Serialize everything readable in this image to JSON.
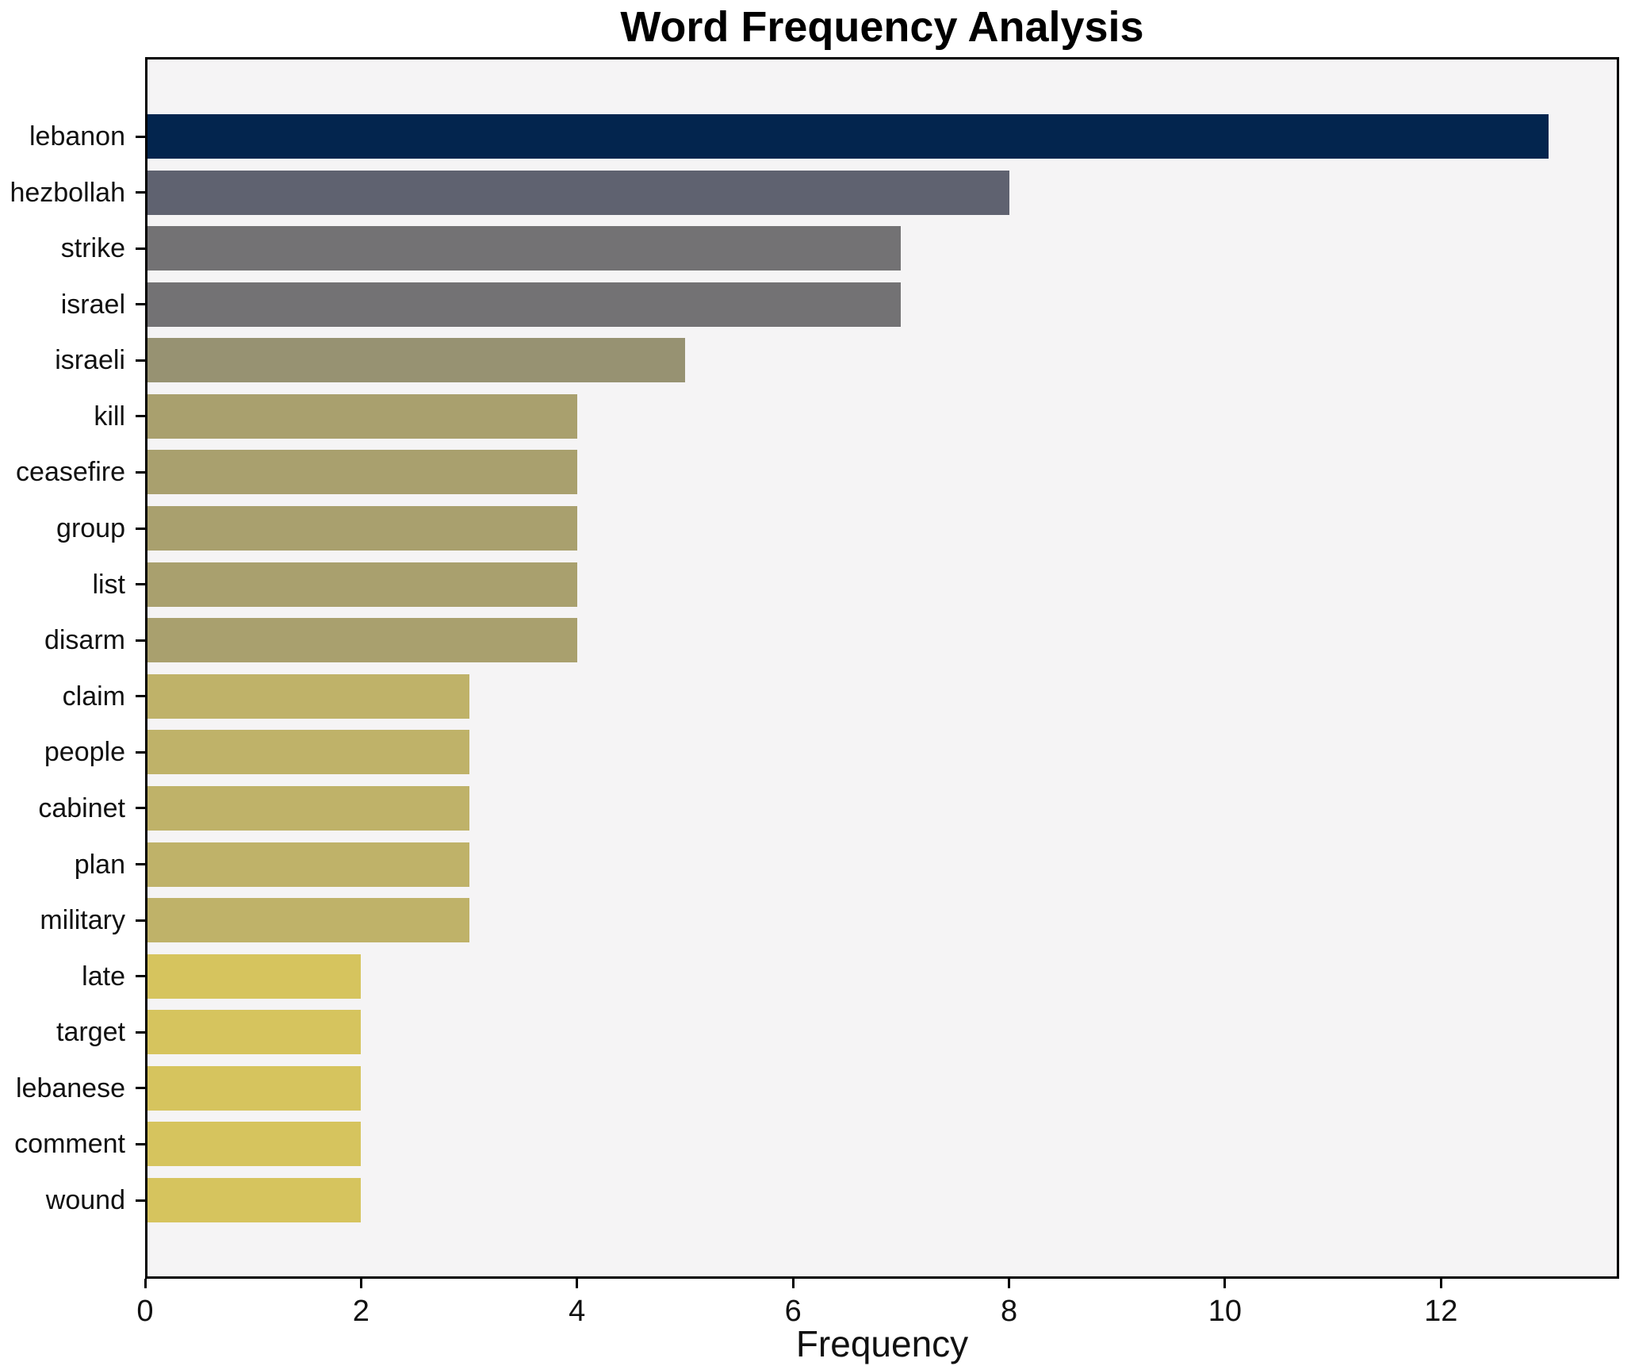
{
  "chart_data": {
    "type": "bar",
    "orientation": "horizontal",
    "title": "Word Frequency Analysis",
    "xlabel": "Frequency",
    "ylabel": "",
    "categories": [
      "lebanon",
      "hezbollah",
      "strike",
      "israel",
      "israeli",
      "kill",
      "ceasefire",
      "group",
      "list",
      "disarm",
      "claim",
      "people",
      "cabinet",
      "plan",
      "military",
      "late",
      "target",
      "lebanese",
      "comment",
      "wound"
    ],
    "values": [
      13,
      8,
      7,
      7,
      5,
      4,
      4,
      4,
      4,
      4,
      3,
      3,
      3,
      3,
      3,
      2,
      2,
      2,
      2,
      2
    ],
    "bar_colors": [
      "#03254e",
      "#5f6270",
      "#737274",
      "#737274",
      "#979272",
      "#a9a06e",
      "#a9a06e",
      "#a9a06e",
      "#a9a06e",
      "#a9a06e",
      "#bfb269",
      "#bfb269",
      "#bfb269",
      "#bfb269",
      "#bfb269",
      "#d6c45e",
      "#d6c45e",
      "#d6c45e",
      "#d6c45e",
      "#d6c45e"
    ],
    "xticks": [
      0,
      2,
      4,
      6,
      8,
      10,
      12
    ],
    "xlim": [
      0,
      13.65
    ],
    "grid": false,
    "legend": null,
    "plot_bg": "#f5f4f5",
    "figure_bg": "#ffffff",
    "spine_color": "#000000",
    "text_color": "#111111"
  }
}
